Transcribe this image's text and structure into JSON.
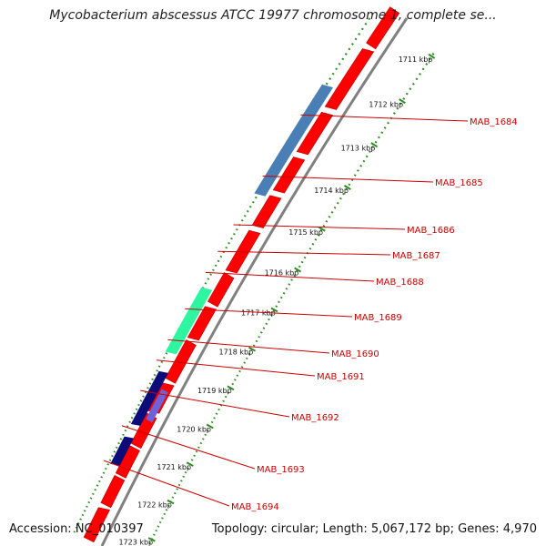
{
  "title": "Mycobacterium abscessus ATCC 19977 chromosome 1, complete se...",
  "footer": {
    "accession": "Accession: NC_010397",
    "summary": "Topology: circular; Length: 5,067,172 bp; Genes: 4,970"
  },
  "ruler": {
    "labels": [
      "1711 kbp",
      "1712 kbp",
      "1713 kbp",
      "1714 kbp",
      "1715 kbp",
      "1716 kbp",
      "1717 kbp",
      "1718 kbp",
      "1719 kbp",
      "1720 kbp",
      "1721 kbp",
      "1722 kbp",
      "1723 kbp"
    ],
    "tick_color": "#2e8b22"
  },
  "genes": [
    {
      "name": "MAB_1684"
    },
    {
      "name": "MAB_1685"
    },
    {
      "name": "MAB_1686"
    },
    {
      "name": "MAB_1687"
    },
    {
      "name": "MAB_1688"
    },
    {
      "name": "MAB_1689"
    },
    {
      "name": "MAB_1690"
    },
    {
      "name": "MAB_1691"
    },
    {
      "name": "MAB_1692"
    },
    {
      "name": "MAB_1693"
    },
    {
      "name": "MAB_1694"
    }
  ],
  "colors": {
    "forward_gene": "#ff0000",
    "backbone": "#808080",
    "steel_blue": "#4a7fb5",
    "spring_green": "#2ef5a0",
    "navy": "#0b0b7a",
    "slate_blue": "#6f62d8",
    "label_red": "#cc0000"
  }
}
